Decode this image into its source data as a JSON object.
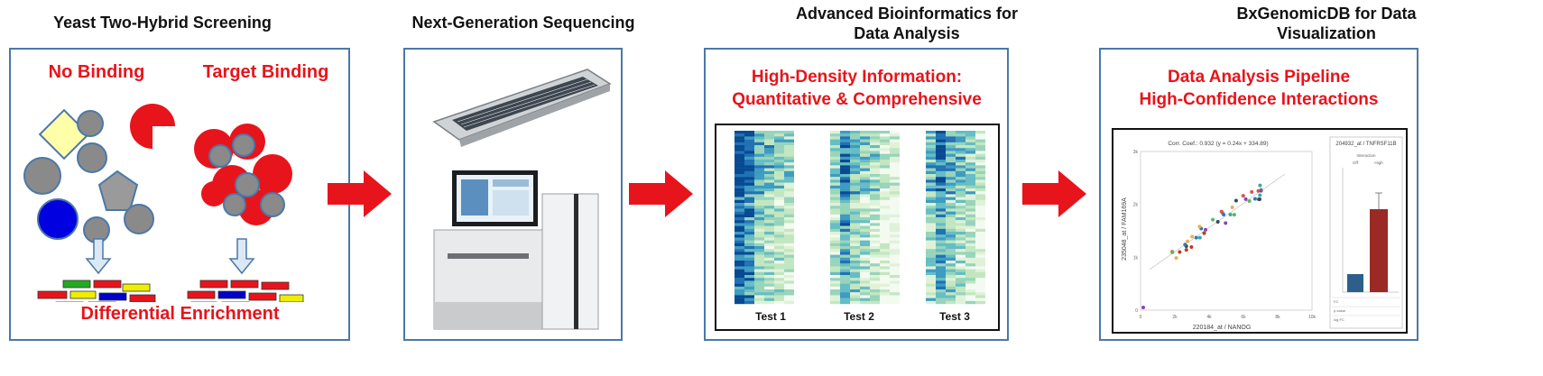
{
  "stages": [
    {
      "title": "Yeast Two-Hybrid Screening"
    },
    {
      "title": "Next-Generation Sequencing"
    },
    {
      "title": "Advanced Bioinformatics for\nData Analysis"
    },
    {
      "title": "BxGenomicDB for Data\nVisualization"
    }
  ],
  "yeast": {
    "no_binding": "No Binding",
    "target_binding": "Target Binding",
    "differential": "Differential Enrichment"
  },
  "bioinfo": {
    "headline": "High-Density Information:\nQuantitative & Comprehensive",
    "tests": [
      "Test 1",
      "Test 2",
      "Test 3"
    ]
  },
  "viz": {
    "headline": "Data Analysis Pipeline\nHigh-Confidence Interactions",
    "scatter_title": "Corr. Coef.: 0.932 (y = 0.24x + 334.89)",
    "xlabel": "220184_at / NANOG",
    "ylabel": "235048_at / FAM169A",
    "xticks": [
      "0",
      "2k",
      "4k",
      "6k",
      "8k",
      "10k"
    ],
    "yticks": [
      "0",
      "1k",
      "2k",
      "3k"
    ],
    "bar_title": "204932_at / TNFRSF11B",
    "bar_sub": "Interaction",
    "bar_cats": [
      "Off",
      "High"
    ],
    "bar_rows": [
      "FC",
      "p-value",
      "log FC"
    ],
    "colors": {
      "bar1": "#2e5f8a",
      "bar2": "#9b2a25"
    }
  },
  "colors": {
    "accent_red": "#e8141b",
    "panel_border": "#4a78a8"
  }
}
